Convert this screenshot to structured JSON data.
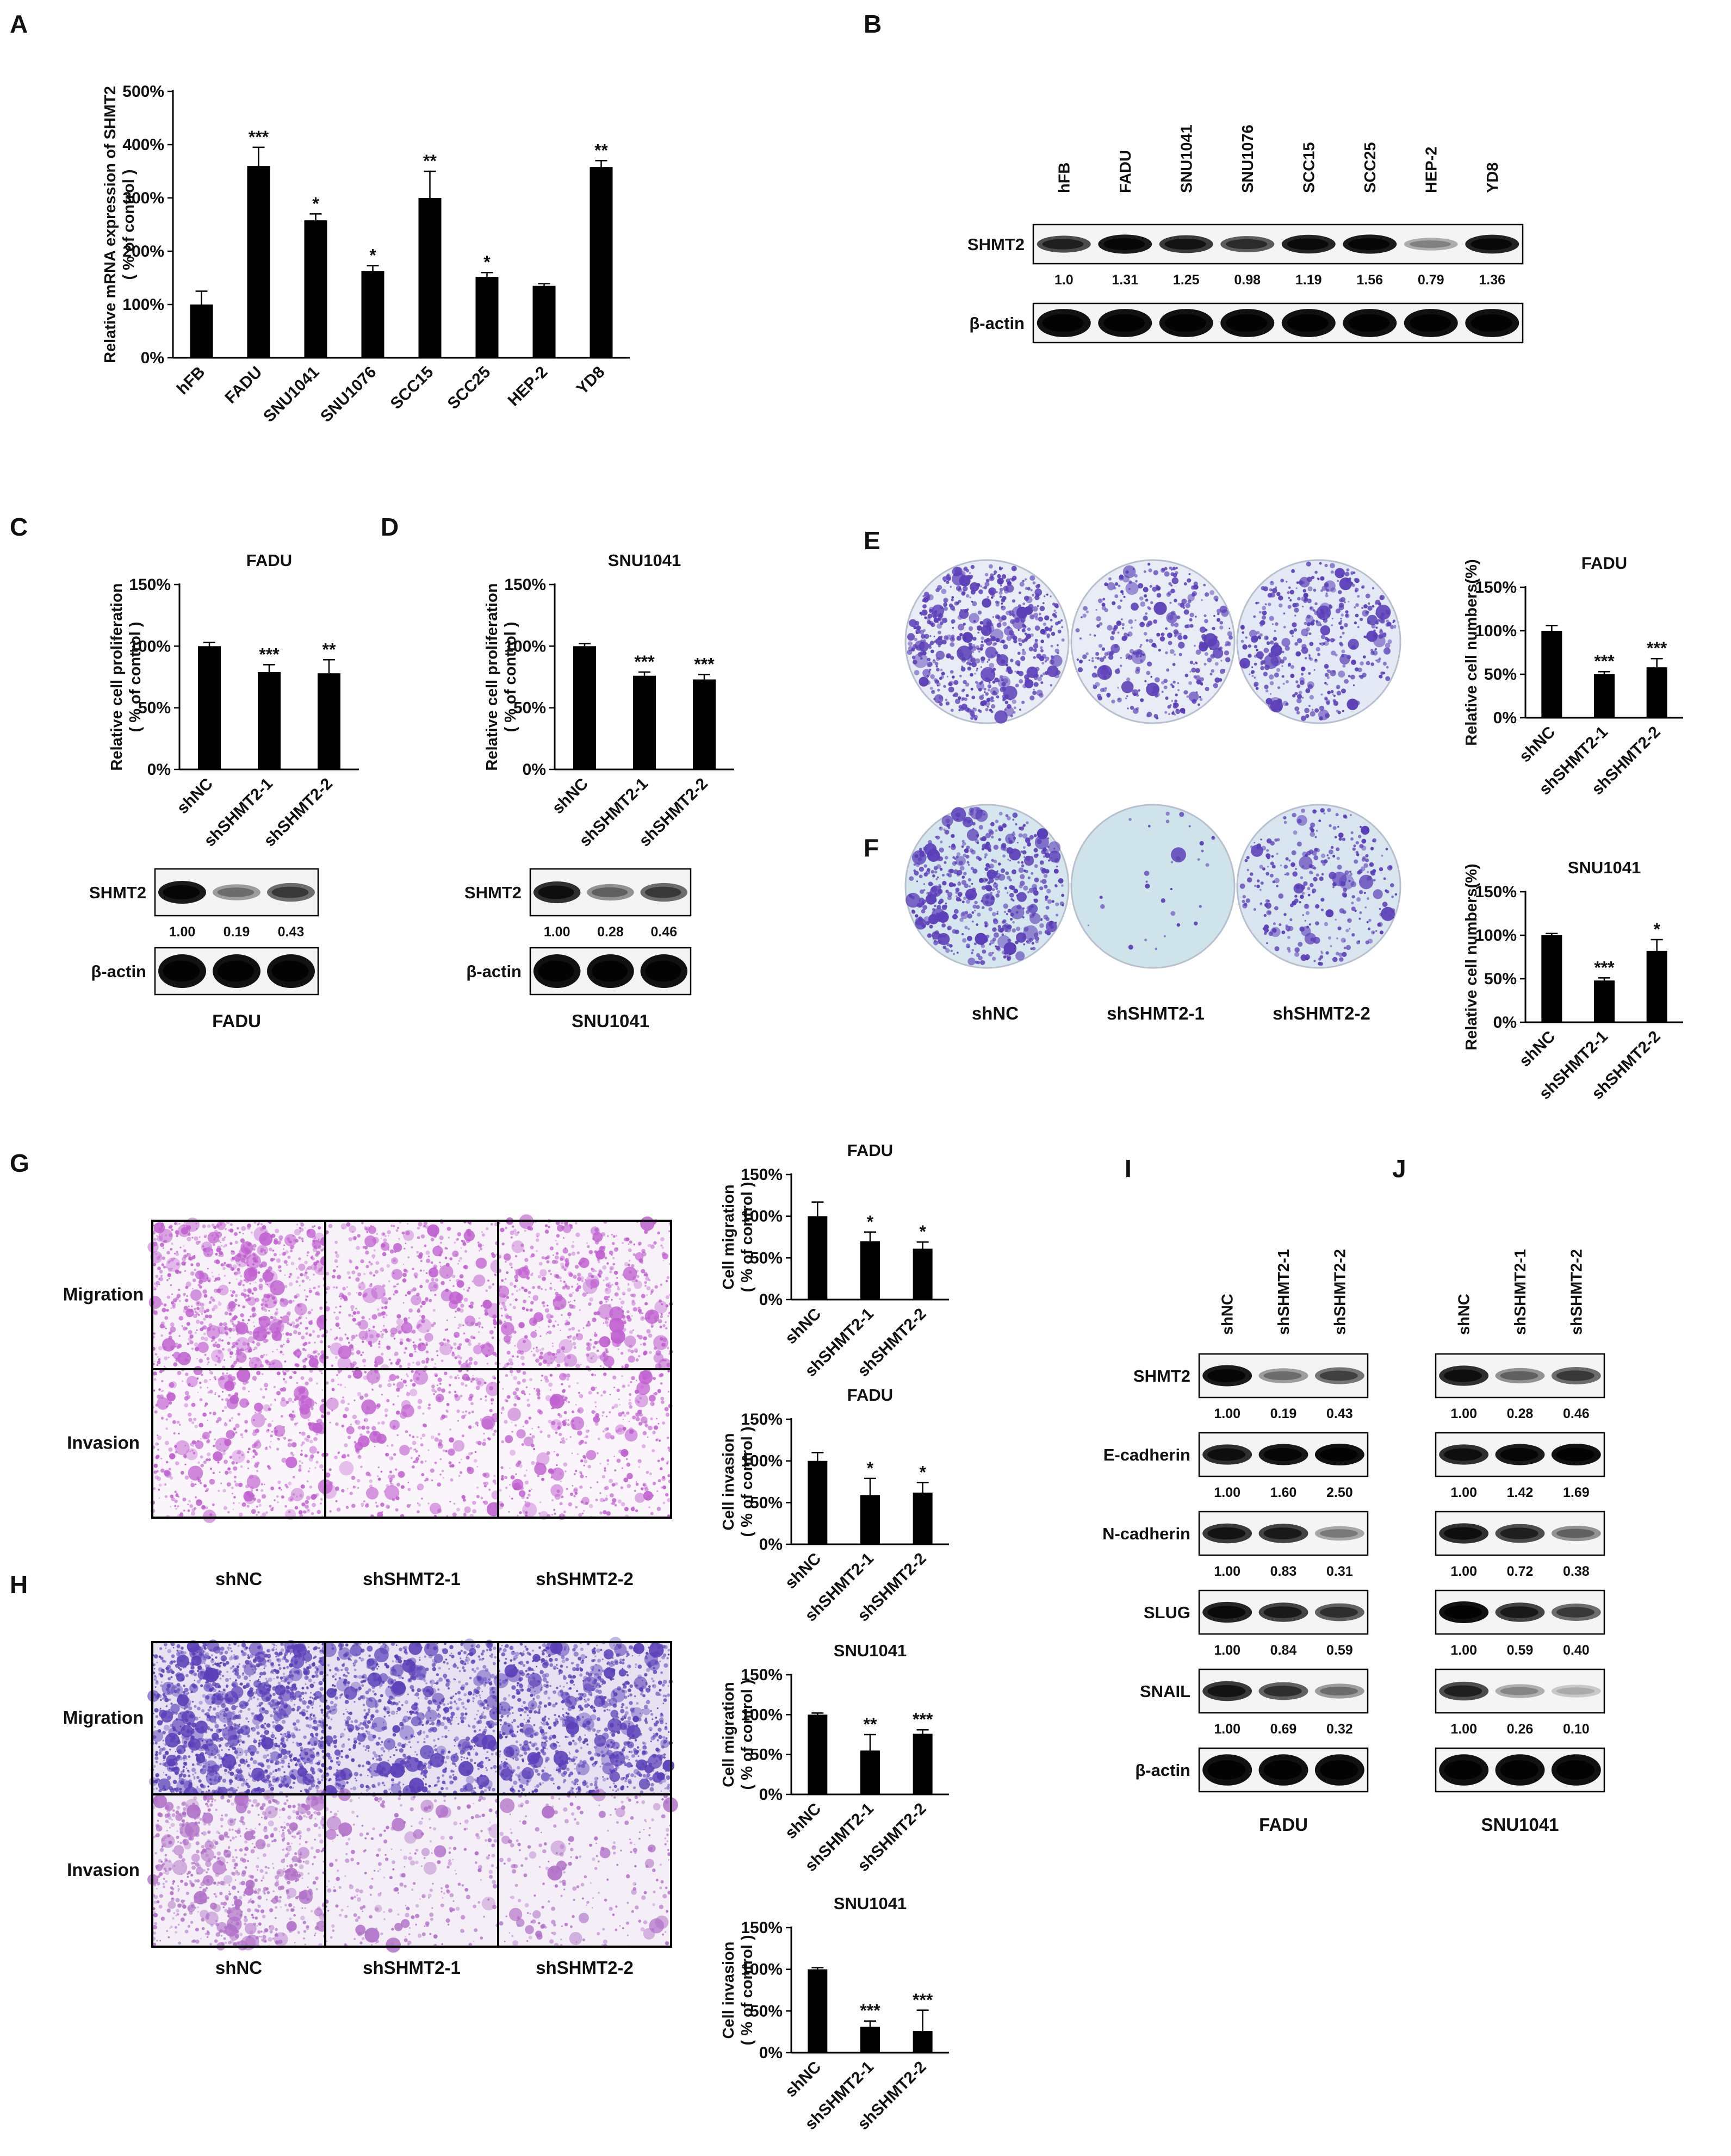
{
  "panels": {
    "A": {
      "letter": "A"
    },
    "B": {
      "letter": "B"
    },
    "C": {
      "letter": "C"
    },
    "D": {
      "letter": "D"
    },
    "E": {
      "letter": "E"
    },
    "F": {
      "letter": "F"
    },
    "G": {
      "letter": "G"
    },
    "H": {
      "letter": "H"
    },
    "I": {
      "letter": "I"
    },
    "J": {
      "letter": "J"
    }
  },
  "westerns": {
    "B": {
      "lanes": [
        "hFB",
        "FADU",
        "SNU1041",
        "SNU1076",
        "SCC15",
        "SCC25",
        "HEP-2",
        "YD8"
      ],
      "blots": [
        {
          "label": "SHMT2",
          "values": [
            "1.0",
            "1.31",
            "1.25",
            "0.98",
            "1.19",
            "1.56",
            "0.79",
            "1.36"
          ],
          "intensity": [
            0.7,
            0.95,
            0.8,
            0.62,
            0.9,
            0.95,
            0.22,
            0.92
          ]
        },
        {
          "label": "β-actin",
          "values": [],
          "intensity": [
            1,
            1,
            1,
            1,
            1,
            1,
            1,
            1
          ]
        }
      ]
    },
    "C": {
      "caption": "FADU",
      "blots": [
        {
          "label": "SHMT2",
          "values": [
            "1.00",
            "0.19",
            "0.43"
          ],
          "intensity": [
            0.95,
            0.3,
            0.55
          ]
        },
        {
          "label": "β-actin",
          "values": [],
          "intensity": [
            1,
            1,
            1
          ]
        }
      ]
    },
    "D": {
      "caption": "SNU1041",
      "blots": [
        {
          "label": "SHMT2",
          "values": [
            "1.00",
            "0.28",
            "0.46"
          ],
          "intensity": [
            0.85,
            0.35,
            0.55
          ]
        },
        {
          "label": "β-actin",
          "values": [],
          "intensity": [
            1,
            1,
            1
          ]
        }
      ]
    },
    "I": {
      "lanes": [
        "shNC",
        "shSHMT2-1",
        "shSHMT2-2"
      ],
      "caption": "FADU",
      "blots": [
        {
          "label": "SHMT2",
          "values": [
            "1.00",
            "0.19",
            "0.43"
          ],
          "intensity": [
            0.95,
            0.3,
            0.5
          ]
        },
        {
          "label": "E-cadherin",
          "values": [
            "1.00",
            "1.60",
            "2.50"
          ],
          "intensity": [
            0.85,
            0.95,
            1
          ]
        },
        {
          "label": "N-cadherin",
          "values": [
            "1.00",
            "0.83",
            "0.31"
          ],
          "intensity": [
            0.8,
            0.75,
            0.25
          ]
        },
        {
          "label": "SLUG",
          "values": [
            "1.00",
            "0.84",
            "0.59"
          ],
          "intensity": [
            0.9,
            0.75,
            0.6
          ]
        },
        {
          "label": "SNAIL",
          "values": [
            "1.00",
            "0.69",
            "0.32"
          ],
          "intensity": [
            0.8,
            0.6,
            0.3
          ]
        },
        {
          "label": "β-actin",
          "values": [],
          "intensity": [
            1,
            1,
            1
          ]
        }
      ]
    },
    "J": {
      "lanes": [
        "shNC",
        "shSHMT2-1",
        "shSHMT2-2"
      ],
      "caption": "SNU1041",
      "blots": [
        {
          "label": "",
          "values": [
            "1.00",
            "0.28",
            "0.46"
          ],
          "intensity": [
            0.85,
            0.35,
            0.55
          ]
        },
        {
          "label": "",
          "values": [
            "1.00",
            "1.42",
            "1.69"
          ],
          "intensity": [
            0.85,
            0.95,
            1
          ]
        },
        {
          "label": "",
          "values": [
            "1.00",
            "0.72",
            "0.38"
          ],
          "intensity": [
            0.85,
            0.7,
            0.35
          ]
        },
        {
          "label": "",
          "values": [
            "1.00",
            "0.59",
            "0.40"
          ],
          "intensity": [
            1,
            0.75,
            0.55
          ]
        },
        {
          "label": "",
          "values": [
            "1.00",
            "0.26",
            "0.10"
          ],
          "intensity": [
            0.7,
            0.2,
            0.08
          ]
        },
        {
          "label": "",
          "values": [],
          "intensity": [
            1,
            1,
            1
          ]
        }
      ]
    }
  },
  "images": {
    "E": {
      "labels": [
        "shNC",
        "shSHMT2-1",
        "shSHMT2-2"
      ]
    },
    "G": {
      "rows": [
        "Migration",
        "Invasion"
      ],
      "cols": [
        "shNC",
        "shSHMT2-1",
        "shSHMT2-2"
      ]
    },
    "H": {
      "rows": [
        "Migration",
        "Invasion"
      ],
      "cols": [
        "shNC",
        "shSHMT2-1",
        "shSHMT2-2"
      ]
    },
    "colors": {
      "crystal_violet": "#5b3fb8",
      "transwell_pink": "#c060d0",
      "dish_bg": "#dde6f2"
    }
  },
  "chart_data": [
    {
      "panel": "A",
      "type": "bar",
      "title": "",
      "ylabel": "Relative mRNA expression of SHMT2 ( % of control )",
      "categories": [
        "hFB",
        "FADU",
        "SNU1041",
        "SNU1076",
        "SCC15",
        "SCC25",
        "HEP-2",
        "YD8"
      ],
      "values": [
        100,
        360,
        258,
        163,
        300,
        152,
        135,
        358
      ],
      "errors": [
        25,
        35,
        12,
        10,
        50,
        8,
        4,
        12
      ],
      "sig": [
        "",
        "***",
        "*",
        "*",
        "**",
        "*",
        "",
        "**"
      ],
      "ylim": [
        0,
        500
      ],
      "yticks": [
        "0%",
        "100%",
        "200%",
        "300%",
        "400%",
        "500%"
      ]
    },
    {
      "panel": "C",
      "type": "bar",
      "title": "FADU",
      "ylabel": "Relative cell proliferation ( % of control )",
      "categories": [
        "shNC",
        "shSHMT2-1",
        "shSHMT2-2"
      ],
      "values": [
        100,
        79,
        78
      ],
      "errors": [
        3,
        6,
        11
      ],
      "sig": [
        "",
        "***",
        "**"
      ],
      "ylim": [
        0,
        150
      ],
      "yticks": [
        "0%",
        "50%",
        "100%",
        "150%"
      ]
    },
    {
      "panel": "D",
      "type": "bar",
      "title": "SNU1041",
      "ylabel": "Relative cell proliferation ( % of control )",
      "categories": [
        "shNC",
        "shSHMT2-1",
        "shSHMT2-2"
      ],
      "values": [
        100,
        76,
        73
      ],
      "errors": [
        2,
        3,
        4
      ],
      "sig": [
        "",
        "***",
        "***"
      ],
      "ylim": [
        0,
        150
      ],
      "yticks": [
        "0%",
        "50%",
        "100%",
        "150%"
      ]
    },
    {
      "panel": "E",
      "type": "bar",
      "title": "FADU",
      "ylabel": "Relative cell numbers(%)",
      "categories": [
        "shNC",
        "shSHMT2-1",
        "shSHMT2-2"
      ],
      "values": [
        100,
        50,
        58
      ],
      "errors": [
        6,
        3,
        10
      ],
      "sig": [
        "",
        "***",
        "***"
      ],
      "ylim": [
        0,
        150
      ],
      "yticks": [
        "0%",
        "50%",
        "100%",
        "150%"
      ]
    },
    {
      "panel": "F",
      "type": "bar",
      "title": "SNU1041",
      "ylabel": "Relative cell numbers(%)",
      "categories": [
        "shNC",
        "shSHMT2-1",
        "shSHMT2-2"
      ],
      "values": [
        100,
        48,
        82
      ],
      "errors": [
        2,
        3,
        13
      ],
      "sig": [
        "",
        "***",
        "*"
      ],
      "ylim": [
        0,
        150
      ],
      "yticks": [
        "0%",
        "50%",
        "100%",
        "150%"
      ]
    },
    {
      "panel": "G-migration",
      "type": "bar",
      "title": "FADU",
      "ylabel": "Cell migration ( % of control )",
      "categories": [
        "shNC",
        "shSHMT2-1",
        "shSHMT2-2"
      ],
      "values": [
        100,
        70,
        61
      ],
      "errors": [
        17,
        11,
        8
      ],
      "sig": [
        "",
        "*",
        "*"
      ],
      "ylim": [
        0,
        150
      ],
      "yticks": [
        "0%",
        "50%",
        "100%",
        "150%"
      ]
    },
    {
      "panel": "G-invasion",
      "type": "bar",
      "title": "FADU",
      "ylabel": "Cell invasion ( % of control )",
      "categories": [
        "shNC",
        "shSHMT2-1",
        "shSHMT2-2"
      ],
      "values": [
        100,
        59,
        62
      ],
      "errors": [
        10,
        20,
        12
      ],
      "sig": [
        "",
        "*",
        "*"
      ],
      "ylim": [
        0,
        150
      ],
      "yticks": [
        "0%",
        "50%",
        "100%",
        "150%"
      ]
    },
    {
      "panel": "H-migration",
      "type": "bar",
      "title": "SNU1041",
      "ylabel": "Cell migration ( % of control )",
      "categories": [
        "shNC",
        "shSHMT2-1",
        "shSHMT2-2"
      ],
      "values": [
        100,
        55,
        76
      ],
      "errors": [
        2,
        20,
        5
      ],
      "sig": [
        "",
        "**",
        "***"
      ],
      "ylim": [
        0,
        150
      ],
      "yticks": [
        "0%",
        "50%",
        "100%",
        "150%"
      ]
    },
    {
      "panel": "H-invasion",
      "type": "bar",
      "title": "SNU1041",
      "ylabel": "Cell invasion ( % of control )",
      "categories": [
        "shNC",
        "shSHMT2-1",
        "shSHMT2-2"
      ],
      "values": [
        100,
        31,
        26
      ],
      "errors": [
        2,
        7,
        25
      ],
      "sig": [
        "",
        "***",
        "***"
      ],
      "ylim": [
        0,
        150
      ],
      "yticks": [
        "0%",
        "50%",
        "100%",
        "150%"
      ]
    }
  ]
}
